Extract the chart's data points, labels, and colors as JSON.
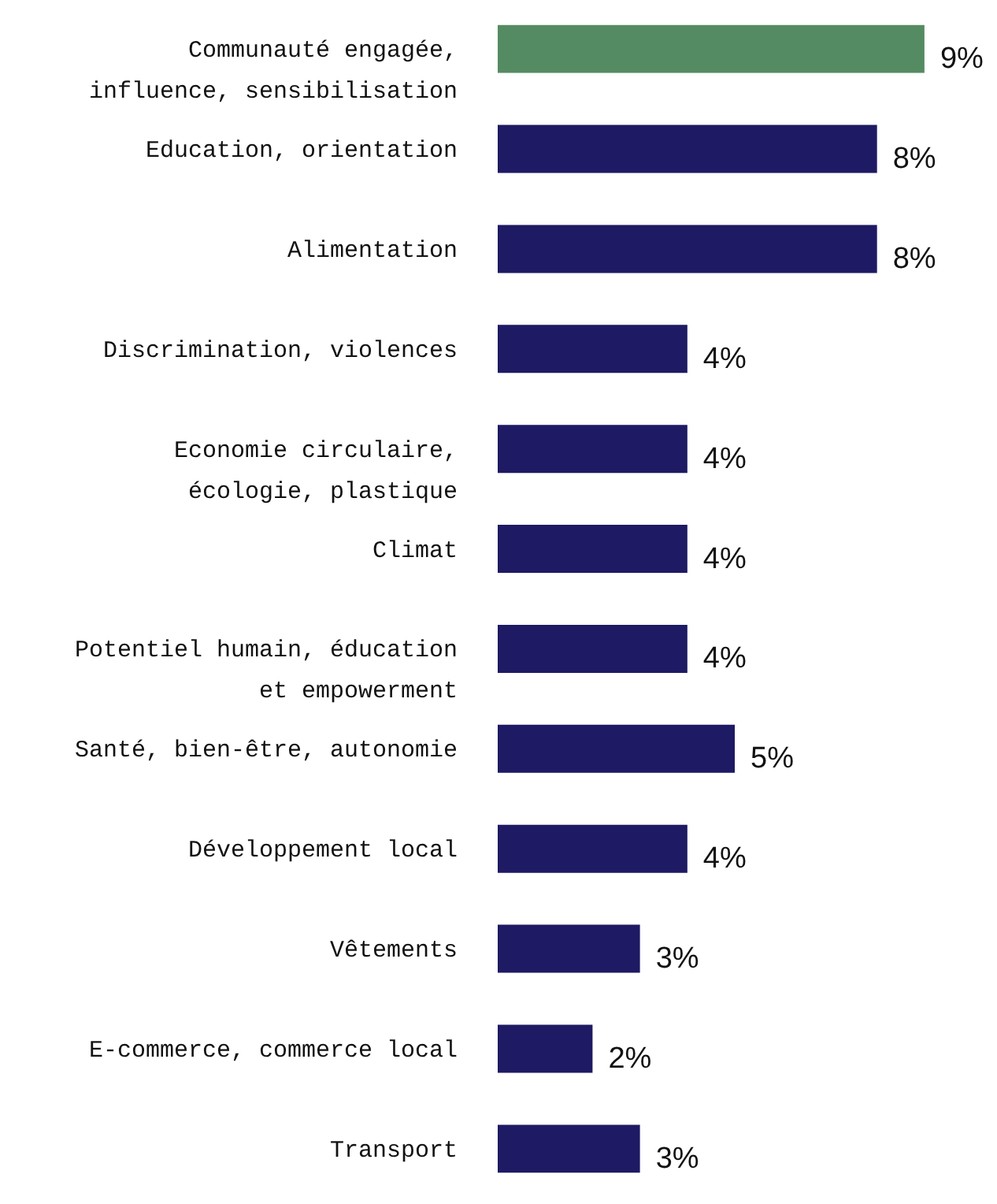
{
  "chart_data": {
    "type": "bar",
    "orientation": "horizontal",
    "value_labels": [
      "9%",
      "8%",
      "8%",
      "4%",
      "4%",
      "4%",
      "4%",
      "5%",
      "4%",
      "3%",
      "2%",
      "3%"
    ],
    "categories": [
      "Communauté engagée, influence, sensibilisation",
      "Education, orientation",
      "Alimentation",
      "Discrimination, violences",
      "Economie circulaire, écologie, plastique",
      "Climat",
      "Potentiel humain, éducation et empowerment",
      "Santé, bien-être, autonomie",
      "Développement local",
      "Vêtements",
      "E-commerce, commerce local",
      "Transport"
    ],
    "values": [
      9,
      8,
      8,
      4,
      4,
      4,
      4,
      5,
      4,
      3,
      2,
      3
    ],
    "colors": [
      "#558b63",
      "#1e1a63",
      "#1e1a63",
      "#1e1a63",
      "#1e1a63",
      "#1e1a63",
      "#1e1a63",
      "#1e1a63",
      "#1e1a63",
      "#1e1a63",
      "#1e1a63",
      "#1e1a63"
    ]
  }
}
